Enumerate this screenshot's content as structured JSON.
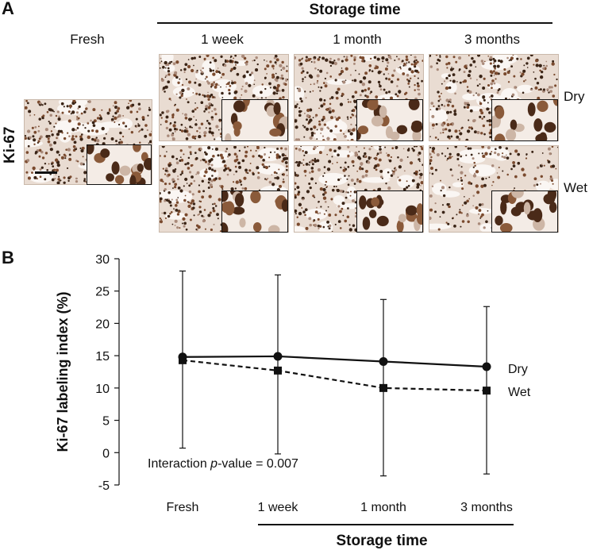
{
  "panelA": {
    "letter": "A",
    "storage_title": "Storage time",
    "columns": [
      "Fresh",
      "1 week",
      "1 month",
      "3 months"
    ],
    "rows": [
      "Dry",
      "Wet"
    ],
    "stain_label": "Ki-67",
    "stain_color": "#7a4a2e"
  },
  "panelB": {
    "letter": "B",
    "annotation_prefix": "Interaction ",
    "annotation_italic": "p",
    "annotation_suffix": "-value = 0.007"
  },
  "chart_data": {
    "type": "line",
    "categories": [
      "Fresh",
      "1 week",
      "1 month",
      "3 months"
    ],
    "ylabel": "Ki-67 labeling index (%)",
    "xlabel": "Storage time",
    "ylim": [
      -5,
      30
    ],
    "yticks": [
      -5,
      0,
      5,
      10,
      15,
      20,
      25,
      30
    ],
    "grid": false,
    "series": [
      {
        "name": "Dry",
        "style": "solid",
        "marker": "circle",
        "values": [
          14.8,
          14.9,
          14.1,
          13.3
        ],
        "error_upper": [
          28.1,
          27.5,
          23.7,
          22.6
        ],
        "error_lower": [
          0.7,
          -0.2,
          -3.6,
          -3.3
        ]
      },
      {
        "name": "Wet",
        "style": "dashed",
        "marker": "square",
        "values": [
          14.3,
          12.7,
          10.0,
          9.6
        ]
      }
    ]
  }
}
